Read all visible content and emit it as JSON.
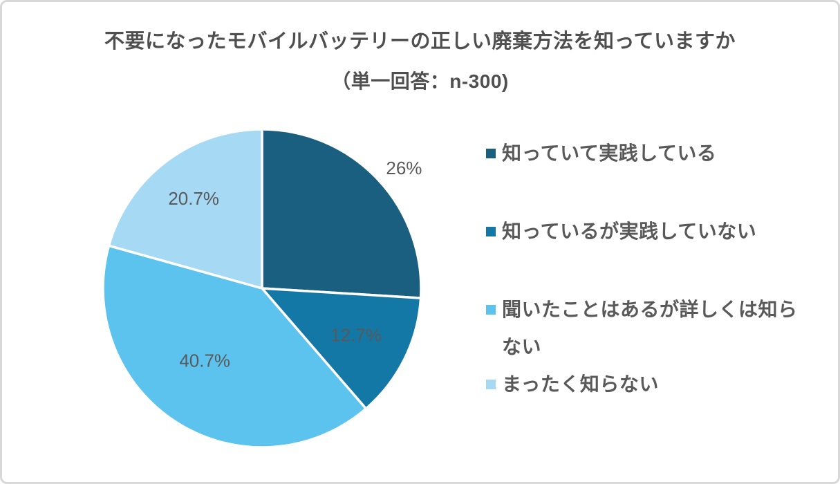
{
  "card": {
    "title_line1": "不要になったモバイルバッテリーの正しい廃棄方法を知っていますか",
    "title_line2": "（単一回答：n-300)"
  },
  "colors": {
    "text": "#595959",
    "card_border": "#d8d8d8",
    "slice_stroke": "#ffffff"
  },
  "chart_data": {
    "type": "pie",
    "title": "不要になったモバイルバッテリーの正しい廃棄方法を知っていますか",
    "subtitle": "（単一回答：n-300)",
    "sample_size": 300,
    "legend_position": "right",
    "start_angle_deg": 0,
    "direction": "clockwise",
    "slices": [
      {
        "label": "知っていて実践している",
        "value": 26,
        "display": "26%",
        "color": "#1a5f80"
      },
      {
        "label": "知っているが実践していない",
        "value": 12.7,
        "display": "12.7%",
        "color": "#1378a6"
      },
      {
        "label": "聞いたことはあるが詳しくは知らない",
        "value": 40.7,
        "display": "40.7%",
        "color": "#5cc3ef"
      },
      {
        "label": "まったく知らない",
        "value": 20.7,
        "display": "20.7%",
        "color": "#a6daf4"
      }
    ]
  }
}
